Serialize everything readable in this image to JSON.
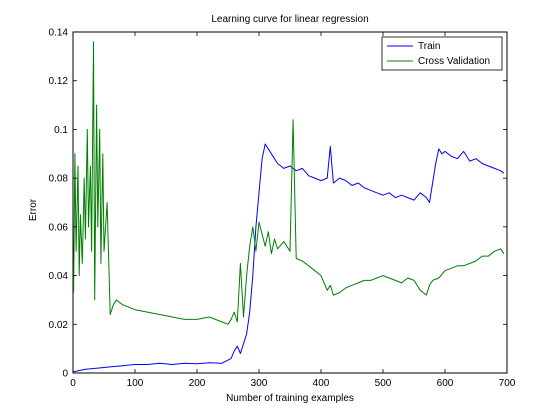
{
  "chart_data": {
    "type": "line",
    "title": "Learning curve for linear regression",
    "xlabel": "Number of training examples",
    "ylabel": "Error",
    "xlim": [
      0,
      700
    ],
    "ylim": [
      0,
      0.14
    ],
    "xticks": [
      0,
      100,
      200,
      300,
      400,
      500,
      600,
      700
    ],
    "xtick_labels": [
      "0",
      "100",
      "200",
      "300",
      "400",
      "500",
      "600",
      "700"
    ],
    "yticks": [
      0,
      0.02,
      0.04,
      0.06,
      0.08,
      0.1,
      0.12,
      0.14
    ],
    "ytick_labels": [
      "0",
      "0.02",
      "0.04",
      "0.06",
      "0.08",
      "0.1",
      "0.12",
      "0.14"
    ],
    "grid": false,
    "legend_position": "top-right",
    "series": [
      {
        "name": "Train",
        "color": "#0000ff",
        "x": [
          1,
          20,
          40,
          60,
          80,
          100,
          120,
          140,
          160,
          180,
          200,
          220,
          240,
          255,
          260,
          265,
          270,
          275,
          280,
          285,
          290,
          295,
          300,
          305,
          310,
          315,
          320,
          330,
          340,
          350,
          360,
          370,
          380,
          390,
          400,
          410,
          415,
          420,
          430,
          440,
          450,
          460,
          470,
          480,
          490,
          500,
          510,
          520,
          530,
          540,
          550,
          560,
          570,
          575,
          580,
          585,
          590,
          595,
          600,
          610,
          620,
          630,
          640,
          650,
          660,
          670,
          680,
          690,
          695
        ],
        "y": [
          0.0005,
          0.0015,
          0.002,
          0.0025,
          0.003,
          0.0035,
          0.0035,
          0.004,
          0.0035,
          0.004,
          0.0038,
          0.0042,
          0.004,
          0.006,
          0.009,
          0.011,
          0.008,
          0.012,
          0.016,
          0.025,
          0.04,
          0.06,
          0.074,
          0.088,
          0.094,
          0.092,
          0.09,
          0.086,
          0.084,
          0.085,
          0.083,
          0.084,
          0.081,
          0.08,
          0.079,
          0.08,
          0.093,
          0.078,
          0.08,
          0.079,
          0.077,
          0.078,
          0.076,
          0.075,
          0.074,
          0.073,
          0.074,
          0.072,
          0.073,
          0.072,
          0.071,
          0.074,
          0.072,
          0.07,
          0.078,
          0.086,
          0.092,
          0.09,
          0.091,
          0.089,
          0.088,
          0.091,
          0.087,
          0.088,
          0.086,
          0.085,
          0.084,
          0.083,
          0.082
        ]
      },
      {
        "name": "Cross Validation",
        "color": "#008000",
        "x": [
          1,
          3,
          5,
          8,
          10,
          12,
          15,
          18,
          20,
          23,
          25,
          28,
          30,
          33,
          35,
          38,
          40,
          43,
          45,
          48,
          50,
          55,
          60,
          65,
          70,
          80,
          90,
          100,
          120,
          140,
          160,
          180,
          200,
          220,
          240,
          250,
          255,
          260,
          265,
          270,
          275,
          280,
          285,
          290,
          295,
          300,
          305,
          310,
          315,
          320,
          325,
          330,
          340,
          350,
          355,
          360,
          370,
          380,
          390,
          400,
          410,
          415,
          420,
          430,
          440,
          450,
          460,
          470,
          480,
          490,
          500,
          510,
          520,
          530,
          540,
          550,
          560,
          570,
          575,
          580,
          590,
          600,
          610,
          620,
          630,
          640,
          650,
          660,
          670,
          680,
          690,
          695
        ],
        "y": [
          0.033,
          0.09,
          0.05,
          0.085,
          0.04,
          0.065,
          0.045,
          0.08,
          0.055,
          0.1,
          0.06,
          0.085,
          0.05,
          0.136,
          0.03,
          0.11,
          0.06,
          0.1,
          0.045,
          0.09,
          0.05,
          0.07,
          0.024,
          0.028,
          0.03,
          0.028,
          0.027,
          0.026,
          0.025,
          0.024,
          0.023,
          0.022,
          0.022,
          0.023,
          0.021,
          0.02,
          0.022,
          0.025,
          0.021,
          0.045,
          0.023,
          0.04,
          0.052,
          0.06,
          0.05,
          0.062,
          0.057,
          0.052,
          0.058,
          0.049,
          0.055,
          0.051,
          0.054,
          0.05,
          0.104,
          0.047,
          0.046,
          0.044,
          0.042,
          0.04,
          0.034,
          0.036,
          0.032,
          0.033,
          0.035,
          0.036,
          0.037,
          0.038,
          0.038,
          0.039,
          0.04,
          0.039,
          0.038,
          0.037,
          0.039,
          0.038,
          0.034,
          0.032,
          0.036,
          0.038,
          0.039,
          0.042,
          0.043,
          0.044,
          0.044,
          0.045,
          0.046,
          0.048,
          0.048,
          0.05,
          0.051,
          0.049
        ]
      }
    ]
  }
}
